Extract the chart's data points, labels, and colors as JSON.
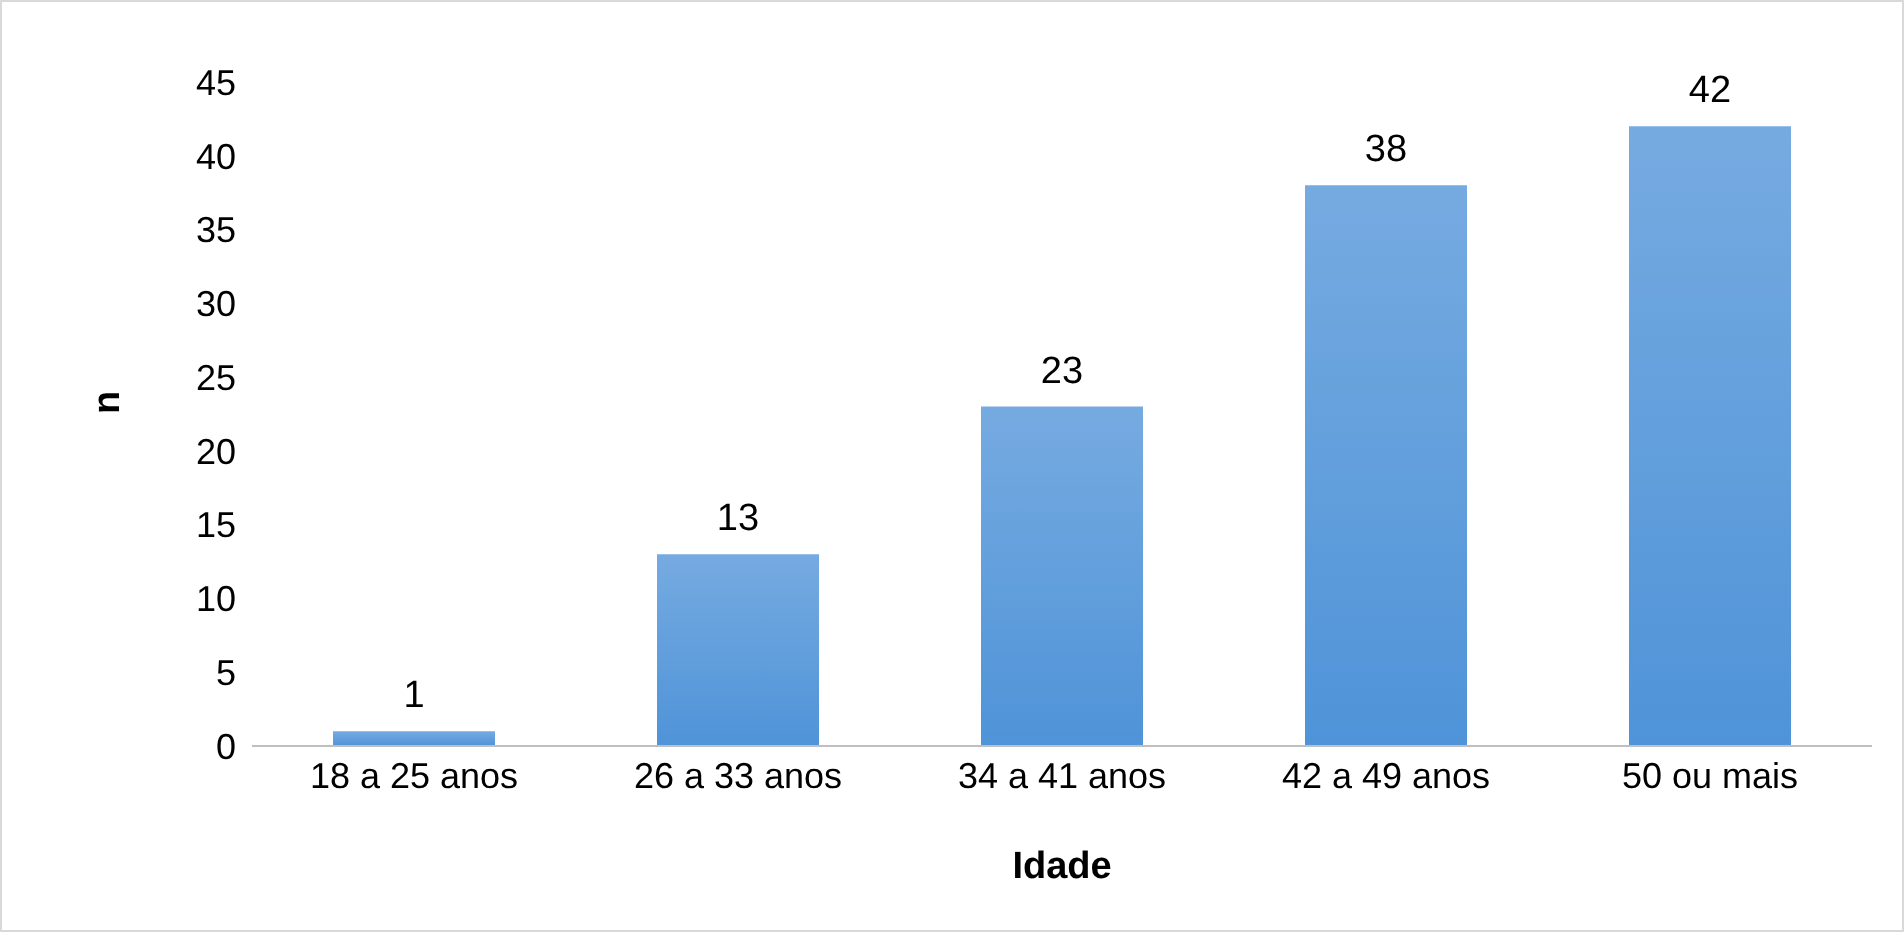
{
  "chart_data": {
    "type": "bar",
    "xlabel": "Idade",
    "ylabel": "n",
    "categories": [
      "18 a 25 anos",
      "26 a 33 anos",
      "34 a 41 anos",
      "42 a 49 anos",
      "50 ou mais"
    ],
    "values": [
      1,
      13,
      23,
      38,
      42
    ],
    "color": "#4f93d8",
    "ylim": [
      0,
      45
    ],
    "yticks": [
      0,
      5,
      10,
      15,
      20,
      25,
      30,
      35,
      40,
      45
    ],
    "grid": false,
    "data_labels": true,
    "legend": false
  }
}
